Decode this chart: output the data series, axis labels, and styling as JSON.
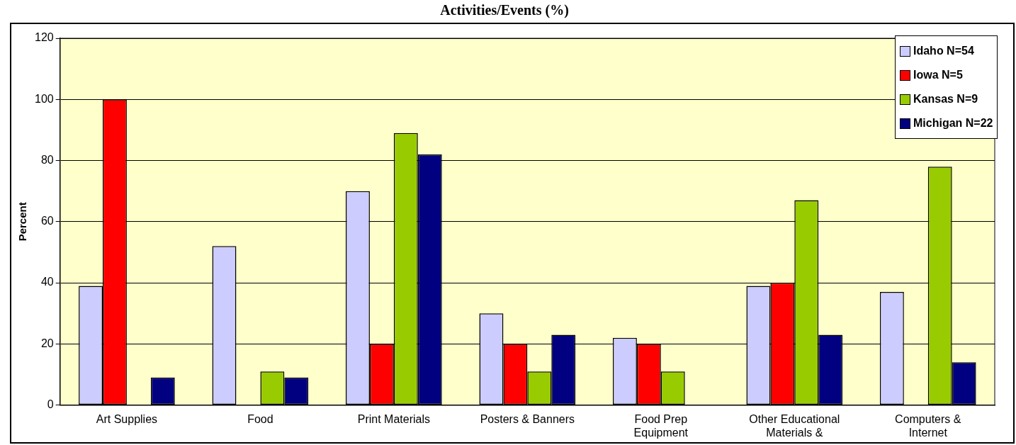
{
  "chart_data": {
    "type": "bar",
    "title": "Activities/Events (%)",
    "ylabel": "Percent",
    "categories": [
      "Art Supplies",
      "Food",
      "Print Materials",
      "Posters & Banners",
      "Food Prep Equipment",
      "Other Educational Materials &",
      "Computers & Internet"
    ],
    "series": [
      {
        "name": "Idaho N=54",
        "color": "#ccccff",
        "values": [
          39,
          52,
          70,
          30,
          22,
          39,
          37
        ]
      },
      {
        "name": "Iowa N=5",
        "color": "#ff0000",
        "values": [
          100,
          0,
          20,
          20,
          20,
          40,
          0
        ]
      },
      {
        "name": "Kansas N=9",
        "color": "#99cc00",
        "values": [
          0,
          11,
          89,
          11,
          11,
          67,
          78
        ]
      },
      {
        "name": "Michigan N=22",
        "color": "#000080",
        "values": [
          9,
          9,
          82,
          23,
          0,
          23,
          14
        ]
      }
    ],
    "ylim": [
      0,
      120
    ],
    "yticks": [
      0,
      20,
      40,
      60,
      80,
      100,
      120
    ],
    "grid": "y",
    "legend": "top right"
  }
}
